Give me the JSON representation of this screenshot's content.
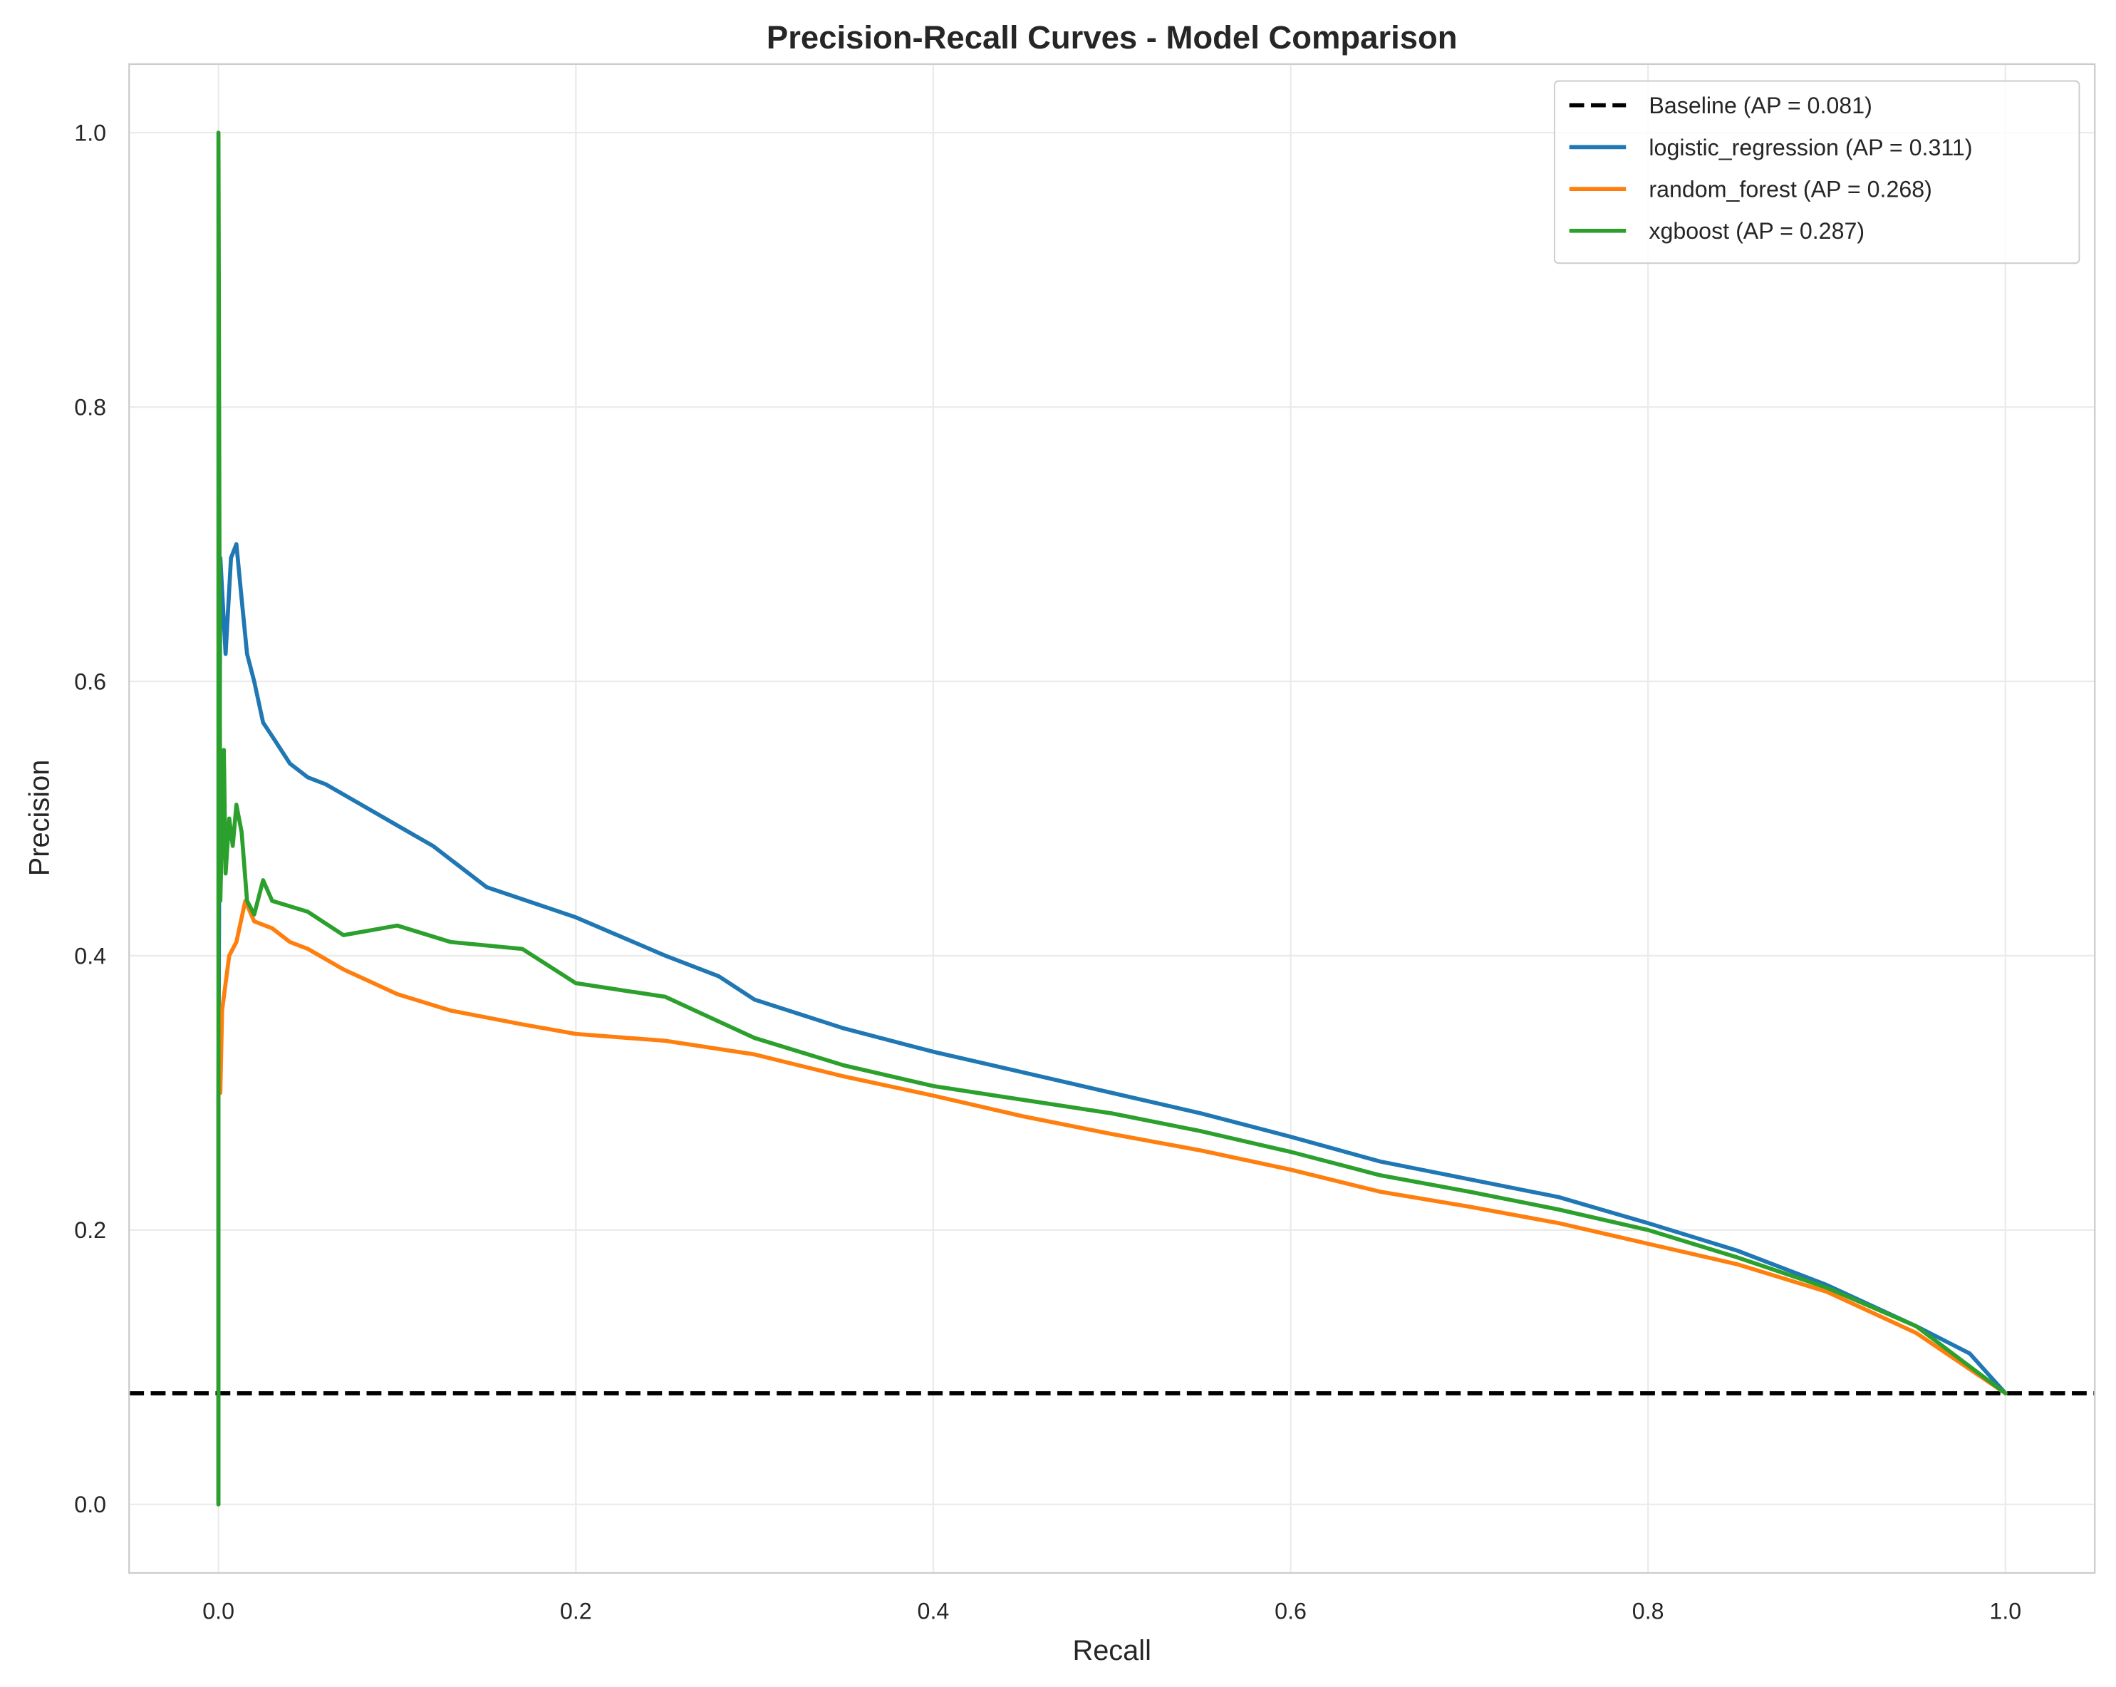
{
  "chart_data": {
    "type": "line",
    "title": "Precision-Recall Curves - Model Comparison",
    "xlabel": "Recall",
    "ylabel": "Precision",
    "xlim": [
      -0.05,
      1.05
    ],
    "ylim": [
      -0.05,
      1.05
    ],
    "xticks": [
      "0.0",
      "0.2",
      "0.4",
      "0.6",
      "0.8",
      "1.0"
    ],
    "yticks": [
      "0.0",
      "0.2",
      "0.4",
      "0.6",
      "0.8",
      "1.0"
    ],
    "grid": true,
    "legend_position": "top-right",
    "baseline": {
      "name": "Baseline (AP = 0.081)",
      "y": 0.081,
      "color": "#000000",
      "style": "dashed"
    },
    "series": [
      {
        "name": "logistic_regression (AP = 0.311)",
        "color": "#1f77b4",
        "x": [
          0,
          0,
          0.001,
          0.004,
          0.007,
          0.01,
          0.013,
          0.016,
          0.02,
          0.025,
          0.03,
          0.04,
          0.05,
          0.06,
          0.08,
          0.1,
          0.12,
          0.15,
          0.2,
          0.25,
          0.28,
          0.3,
          0.35,
          0.4,
          0.45,
          0.5,
          0.55,
          0.6,
          0.65,
          0.7,
          0.75,
          0.8,
          0.85,
          0.9,
          0.95,
          0.98,
          1.0
        ],
        "y": [
          0,
          0.3,
          0.69,
          0.62,
          0.69,
          0.7,
          0.66,
          0.62,
          0.6,
          0.57,
          0.56,
          0.54,
          0.53,
          0.525,
          0.51,
          0.495,
          0.48,
          0.45,
          0.428,
          0.4,
          0.385,
          0.368,
          0.347,
          0.33,
          0.315,
          0.3,
          0.285,
          0.268,
          0.25,
          0.237,
          0.224,
          0.205,
          0.185,
          0.16,
          0.13,
          0.11,
          0.081
        ]
      },
      {
        "name": "random_forest (AP = 0.268)",
        "color": "#ff7f0e",
        "x": [
          0.001,
          0.002,
          0.004,
          0.006,
          0.01,
          0.015,
          0.02,
          0.03,
          0.04,
          0.05,
          0.07,
          0.1,
          0.13,
          0.17,
          0.2,
          0.25,
          0.3,
          0.35,
          0.4,
          0.45,
          0.5,
          0.55,
          0.6,
          0.65,
          0.7,
          0.75,
          0.8,
          0.85,
          0.9,
          0.95,
          1.0
        ],
        "y": [
          0.3,
          0.36,
          0.38,
          0.4,
          0.41,
          0.44,
          0.425,
          0.42,
          0.41,
          0.405,
          0.39,
          0.372,
          0.36,
          0.35,
          0.343,
          0.338,
          0.328,
          0.312,
          0.298,
          0.283,
          0.27,
          0.258,
          0.244,
          0.228,
          0.217,
          0.205,
          0.19,
          0.175,
          0.155,
          0.125,
          0.081
        ]
      },
      {
        "name": "xgboost (AP = 0.287)",
        "color": "#2ca02c",
        "x": [
          0,
          0,
          0.001,
          0.003,
          0.004,
          0.006,
          0.008,
          0.01,
          0.013,
          0.016,
          0.02,
          0.025,
          0.03,
          0.05,
          0.07,
          0.1,
          0.13,
          0.17,
          0.2,
          0.25,
          0.3,
          0.35,
          0.4,
          0.45,
          0.5,
          0.55,
          0.6,
          0.65,
          0.7,
          0.75,
          0.8,
          0.85,
          0.9,
          0.95,
          1.0
        ],
        "y": [
          0,
          1.0,
          0.44,
          0.55,
          0.46,
          0.5,
          0.48,
          0.51,
          0.49,
          0.44,
          0.43,
          0.455,
          0.44,
          0.432,
          0.415,
          0.422,
          0.41,
          0.405,
          0.38,
          0.37,
          0.34,
          0.32,
          0.305,
          0.295,
          0.285,
          0.272,
          0.257,
          0.24,
          0.228,
          0.215,
          0.2,
          0.18,
          0.158,
          0.13,
          0.081
        ]
      }
    ]
  }
}
